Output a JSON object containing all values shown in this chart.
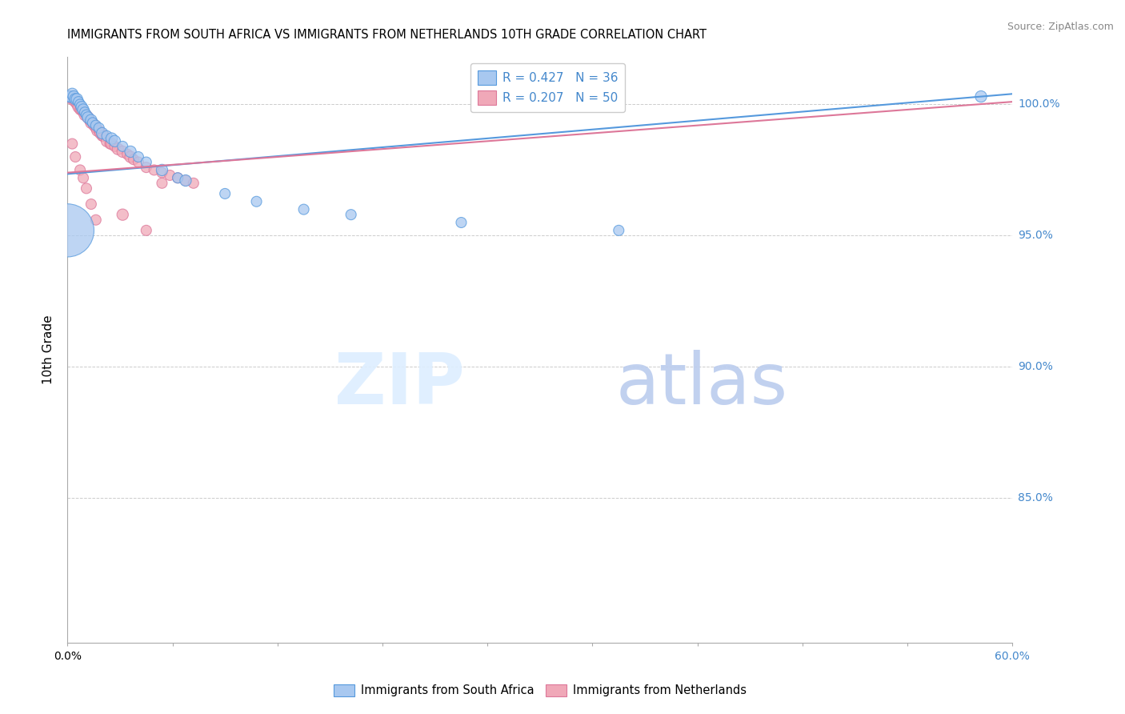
{
  "title": "IMMIGRANTS FROM SOUTH AFRICA VS IMMIGRANTS FROM NETHERLANDS 10TH GRADE CORRELATION CHART",
  "source": "Source: ZipAtlas.com",
  "ylabel": "10th Grade",
  "series1_color": "#a8c8f0",
  "series2_color": "#f0a8b8",
  "line1_color": "#5599dd",
  "line2_color": "#dd7799",
  "series1_name": "Immigrants from South Africa",
  "series2_name": "Immigrants from Netherlands",
  "legend1_r": "0.427",
  "legend1_n": "36",
  "legend2_r": "0.207",
  "legend2_n": "50",
  "xmin": 0.0,
  "xmax": 0.6,
  "ymin": 0.795,
  "ymax": 1.018,
  "yticks": [
    0.85,
    0.9,
    0.95,
    1.0
  ],
  "ytick_labels": [
    "85.0%",
    "90.0%",
    "95.0%",
    "100.0%"
  ],
  "line1_x0": 0.0,
  "line1_x1": 0.6,
  "line1_y0": 0.9735,
  "line1_y1": 1.004,
  "line2_x0": 0.0,
  "line2_x1": 0.6,
  "line2_y0": 0.974,
  "line2_y1": 1.001,
  "sa_x": [
    0.001,
    0.002,
    0.003,
    0.004,
    0.005,
    0.006,
    0.007,
    0.008,
    0.009,
    0.01,
    0.011,
    0.012,
    0.013,
    0.015,
    0.016,
    0.018,
    0.02,
    0.022,
    0.025,
    0.028,
    0.03,
    0.035,
    0.04,
    0.045,
    0.05,
    0.06,
    0.07,
    0.075,
    0.1,
    0.12,
    0.15,
    0.18,
    0.25,
    0.35,
    0.58,
    0.0
  ],
  "sa_y": [
    1.003,
    1.003,
    1.004,
    1.003,
    1.002,
    1.002,
    1.001,
    1.0,
    0.999,
    0.998,
    0.997,
    0.996,
    0.995,
    0.994,
    0.993,
    0.992,
    0.991,
    0.989,
    0.988,
    0.987,
    0.986,
    0.984,
    0.982,
    0.98,
    0.978,
    0.975,
    0.972,
    0.971,
    0.966,
    0.963,
    0.96,
    0.958,
    0.955,
    0.952,
    1.003,
    0.952
  ],
  "sa_s": [
    30,
    30,
    30,
    30,
    30,
    30,
    25,
    25,
    30,
    30,
    25,
    25,
    30,
    30,
    25,
    25,
    25,
    30,
    25,
    30,
    30,
    25,
    30,
    25,
    25,
    30,
    25,
    30,
    25,
    25,
    25,
    25,
    25,
    25,
    30,
    650
  ],
  "nl_x": [
    0.001,
    0.002,
    0.003,
    0.004,
    0.005,
    0.006,
    0.007,
    0.008,
    0.009,
    0.01,
    0.011,
    0.012,
    0.013,
    0.014,
    0.015,
    0.016,
    0.017,
    0.018,
    0.019,
    0.02,
    0.021,
    0.022,
    0.023,
    0.025,
    0.027,
    0.028,
    0.03,
    0.032,
    0.035,
    0.038,
    0.04,
    0.042,
    0.045,
    0.05,
    0.055,
    0.06,
    0.065,
    0.07,
    0.075,
    0.08,
    0.003,
    0.005,
    0.008,
    0.01,
    0.012,
    0.015,
    0.018,
    0.035,
    0.05,
    0.06
  ],
  "nl_y": [
    1.003,
    1.003,
    1.002,
    1.002,
    1.001,
    1.0,
    0.999,
    0.998,
    0.998,
    0.997,
    0.996,
    0.996,
    0.995,
    0.994,
    0.993,
    0.993,
    0.992,
    0.991,
    0.99,
    0.99,
    0.989,
    0.988,
    0.988,
    0.986,
    0.985,
    0.985,
    0.984,
    0.983,
    0.982,
    0.981,
    0.98,
    0.979,
    0.978,
    0.976,
    0.975,
    0.974,
    0.973,
    0.972,
    0.971,
    0.97,
    0.985,
    0.98,
    0.975,
    0.972,
    0.968,
    0.962,
    0.956,
    0.958,
    0.952,
    0.97
  ],
  "nl_s": [
    30,
    30,
    30,
    25,
    30,
    25,
    30,
    25,
    30,
    25,
    30,
    25,
    30,
    25,
    30,
    25,
    30,
    25,
    30,
    25,
    30,
    25,
    30,
    30,
    25,
    30,
    25,
    30,
    30,
    25,
    30,
    25,
    25,
    25,
    25,
    25,
    25,
    25,
    25,
    25,
    25,
    25,
    25,
    25,
    25,
    25,
    25,
    30,
    25,
    25
  ]
}
